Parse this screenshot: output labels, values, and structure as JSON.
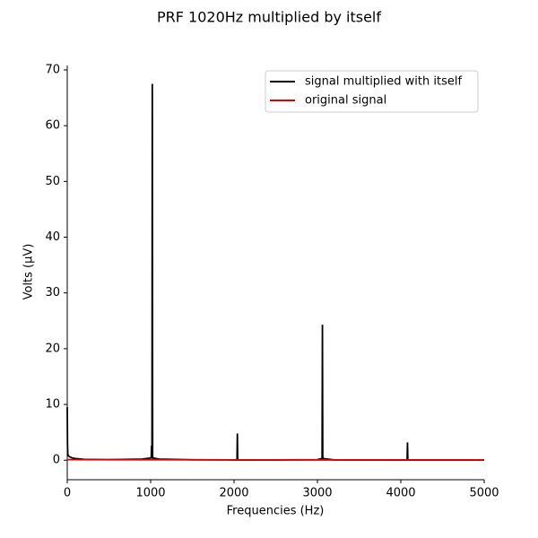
{
  "chart_data": {
    "type": "line",
    "title": "PRF 1020Hz multiplied by itself",
    "xlabel": "Frequencies (Hz)",
    "ylabel": "Volts (μV)",
    "xlim": [
      0,
      5000
    ],
    "xticks": [
      0,
      1000,
      2000,
      3000,
      4000,
      5000
    ],
    "ylim": [
      -3.5,
      70.8
    ],
    "yticks": [
      0,
      10,
      20,
      30,
      40,
      50,
      60,
      70
    ],
    "legend": "upper right",
    "series": [
      {
        "name": "signal multiplied with itself",
        "color": "#000000",
        "x": [
          0,
          3,
          6,
          12,
          30,
          60,
          100,
          200,
          500,
          900,
          1000,
          1008,
          1010,
          1012,
          1016,
          1020,
          1024,
          1030,
          1100,
          1500,
          2000,
          2036,
          2040,
          2044,
          2500,
          3000,
          3050,
          3056,
          3060,
          3064,
          3070,
          3200,
          4000,
          4076,
          4080,
          4084,
          4500,
          5000
        ],
        "values": [
          9.5,
          3.0,
          1.2,
          0.8,
          0.6,
          0.4,
          0.3,
          0.15,
          0.1,
          0.2,
          0.4,
          0.6,
          2.6,
          0.6,
          0.5,
          67.5,
          0.5,
          0.4,
          0.2,
          0.08,
          0.05,
          0.05,
          4.8,
          0.05,
          0.05,
          0.1,
          0.3,
          0.3,
          24.3,
          0.3,
          0.3,
          0.05,
          0.03,
          0.03,
          3.2,
          0.03,
          0.03,
          0.02
        ]
      },
      {
        "name": "original signal",
        "color": "#e00000",
        "x": [
          0,
          1000,
          2000,
          3000,
          4000,
          5000
        ],
        "values": [
          0.1,
          0.08,
          0.06,
          0.05,
          0.05,
          0.05
        ]
      }
    ]
  }
}
